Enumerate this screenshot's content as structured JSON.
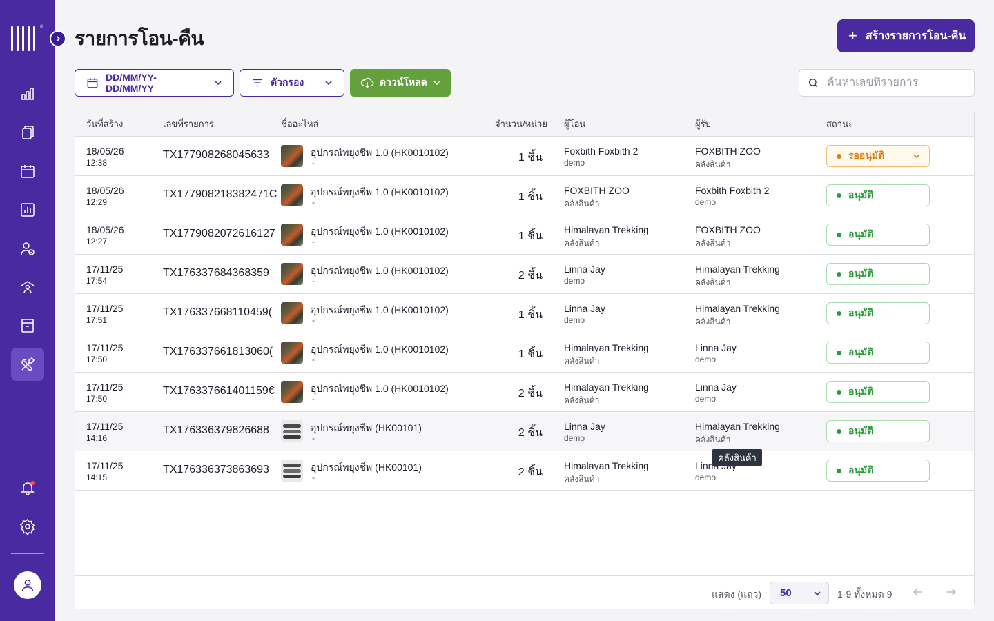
{
  "header": {
    "title": "รายการโอน-คืน",
    "create_button": "สร้างรายการโอน-คืน"
  },
  "toolbar": {
    "date_range": "DD/MM/YY-DD/MM/YY",
    "filter": "ตัวกรอง",
    "download": "ดาวน์โหลด",
    "search_placeholder": "ค้นหาเลขที่รายการ"
  },
  "sidebar": {
    "items": [
      "dashboard-chart-icon",
      "documents-icon",
      "calendar-icon",
      "report-icon",
      "user-check-icon",
      "warehouse-icon",
      "archive-icon",
      "tools-icon"
    ],
    "active_item": "tools-icon",
    "notification": "bell-icon",
    "settings": "gear-icon",
    "profile": "user-icon"
  },
  "table": {
    "columns": [
      "วันที่สร้าง",
      "เลขที่รายการ",
      "ชื่ออะไหล่",
      "จำนวน/หน่วย",
      "ผู้โอน",
      "ผู้รับ",
      "สถานะ"
    ],
    "rows": [
      {
        "date": "18/05/26",
        "time": "12:38",
        "txid": "TX177908268045633",
        "thumb": "t1",
        "product": "อุปกรณ์พยุงชีพ 1.0 (HK0010102)",
        "sub": "-",
        "qty": "1 ชิ้น",
        "sender": "Foxbith Foxbith 2",
        "sender_sub": "demo",
        "receiver": "FOXBITH ZOO",
        "receiver_sub": "คลังสินค้า",
        "status": "รออนุมัติ",
        "status_type": "pending"
      },
      {
        "date": "18/05/26",
        "time": "12:29",
        "txid": "TX177908218382471C",
        "thumb": "t1",
        "product": "อุปกรณ์พยุงชีพ 1.0 (HK0010102)",
        "sub": "-",
        "qty": "1 ชิ้น",
        "sender": "FOXBITH ZOO",
        "sender_sub": "คลังสินค้า",
        "receiver": "Foxbith Foxbith 2",
        "receiver_sub": "demo",
        "status": "อนุมัติ",
        "status_type": "approved"
      },
      {
        "date": "18/05/26",
        "time": "12:27",
        "txid": "TX1779082072616127",
        "thumb": "t1",
        "product": "อุปกรณ์พยุงชีพ 1.0 (HK0010102)",
        "sub": "-",
        "qty": "1 ชิ้น",
        "sender": "Himalayan Trekking",
        "sender_sub": "คลังสินค้า",
        "receiver": "FOXBITH ZOO",
        "receiver_sub": "คลังสินค้า",
        "status": "อนุมัติ",
        "status_type": "approved"
      },
      {
        "date": "17/11/25",
        "time": "17:54",
        "txid": "TX176337684368359",
        "thumb": "t1",
        "product": "อุปกรณ์พยุงชีพ 1.0 (HK0010102)",
        "sub": "-",
        "qty": "2 ชิ้น",
        "sender": "Linna Jay",
        "sender_sub": "demo",
        "receiver": "Himalayan Trekking",
        "receiver_sub": "คลังสินค้า",
        "status": "อนุมัติ",
        "status_type": "approved"
      },
      {
        "date": "17/11/25",
        "time": "17:51",
        "txid": "TX176337668110459(",
        "thumb": "t1",
        "product": "อุปกรณ์พยุงชีพ 1.0 (HK0010102)",
        "sub": "-",
        "qty": "1 ชิ้น",
        "sender": "Linna Jay",
        "sender_sub": "demo",
        "receiver": "Himalayan Trekking",
        "receiver_sub": "คลังสินค้า",
        "status": "อนุมัติ",
        "status_type": "approved"
      },
      {
        "date": "17/11/25",
        "time": "17:50",
        "txid": "TX176337661813060(",
        "thumb": "t1",
        "product": "อุปกรณ์พยุงชีพ 1.0 (HK0010102)",
        "sub": "-",
        "qty": "1 ชิ้น",
        "sender": "Himalayan Trekking",
        "sender_sub": "คลังสินค้า",
        "receiver": "Linna Jay",
        "receiver_sub": "demo",
        "status": "อนุมัติ",
        "status_type": "approved"
      },
      {
        "date": "17/11/25",
        "time": "17:50",
        "txid": "TX176337661401159€",
        "thumb": "t1",
        "product": "อุปกรณ์พยุงชีพ 1.0 (HK0010102)",
        "sub": "-",
        "qty": "2 ชิ้น",
        "sender": "Himalayan Trekking",
        "sender_sub": "คลังสินค้า",
        "receiver": "Linna Jay",
        "receiver_sub": "demo",
        "status": "อนุมัติ",
        "status_type": "approved"
      },
      {
        "date": "17/11/25",
        "time": "14:16",
        "txid": "TX176336379826688",
        "thumb": "t2",
        "product": "อุปกรณ์พยุงชีพ (HK00101)",
        "sub": "-",
        "qty": "2 ชิ้น",
        "sender": "Linna Jay",
        "sender_sub": "demo",
        "receiver": "Himalayan Trekking",
        "receiver_sub": "คลังสินค้า",
        "status": "อนุมัติ",
        "status_type": "approved"
      },
      {
        "date": "17/11/25",
        "time": "14:15",
        "txid": "TX176336373863693",
        "thumb": "t2",
        "product": "อุปกรณ์พยุงชีพ (HK00101)",
        "sub": "-",
        "qty": "2 ชิ้น",
        "sender": "Himalayan Trekking",
        "sender_sub": "คลังสินค้า",
        "receiver": "Linna Jay",
        "receiver_sub": "demo",
        "status": "อนุมัติ",
        "status_type": "approved"
      }
    ]
  },
  "tooltip": "คลังสินค้า",
  "pagination": {
    "rows_label": "แสดง (แถว)",
    "page_size": "50",
    "info": "1-9 ทั้งหมด 9"
  },
  "colors": {
    "brand": "#4a2aa0",
    "download": "#64a03c",
    "approved": "#2a9a3a",
    "pending": "#e07a10"
  }
}
